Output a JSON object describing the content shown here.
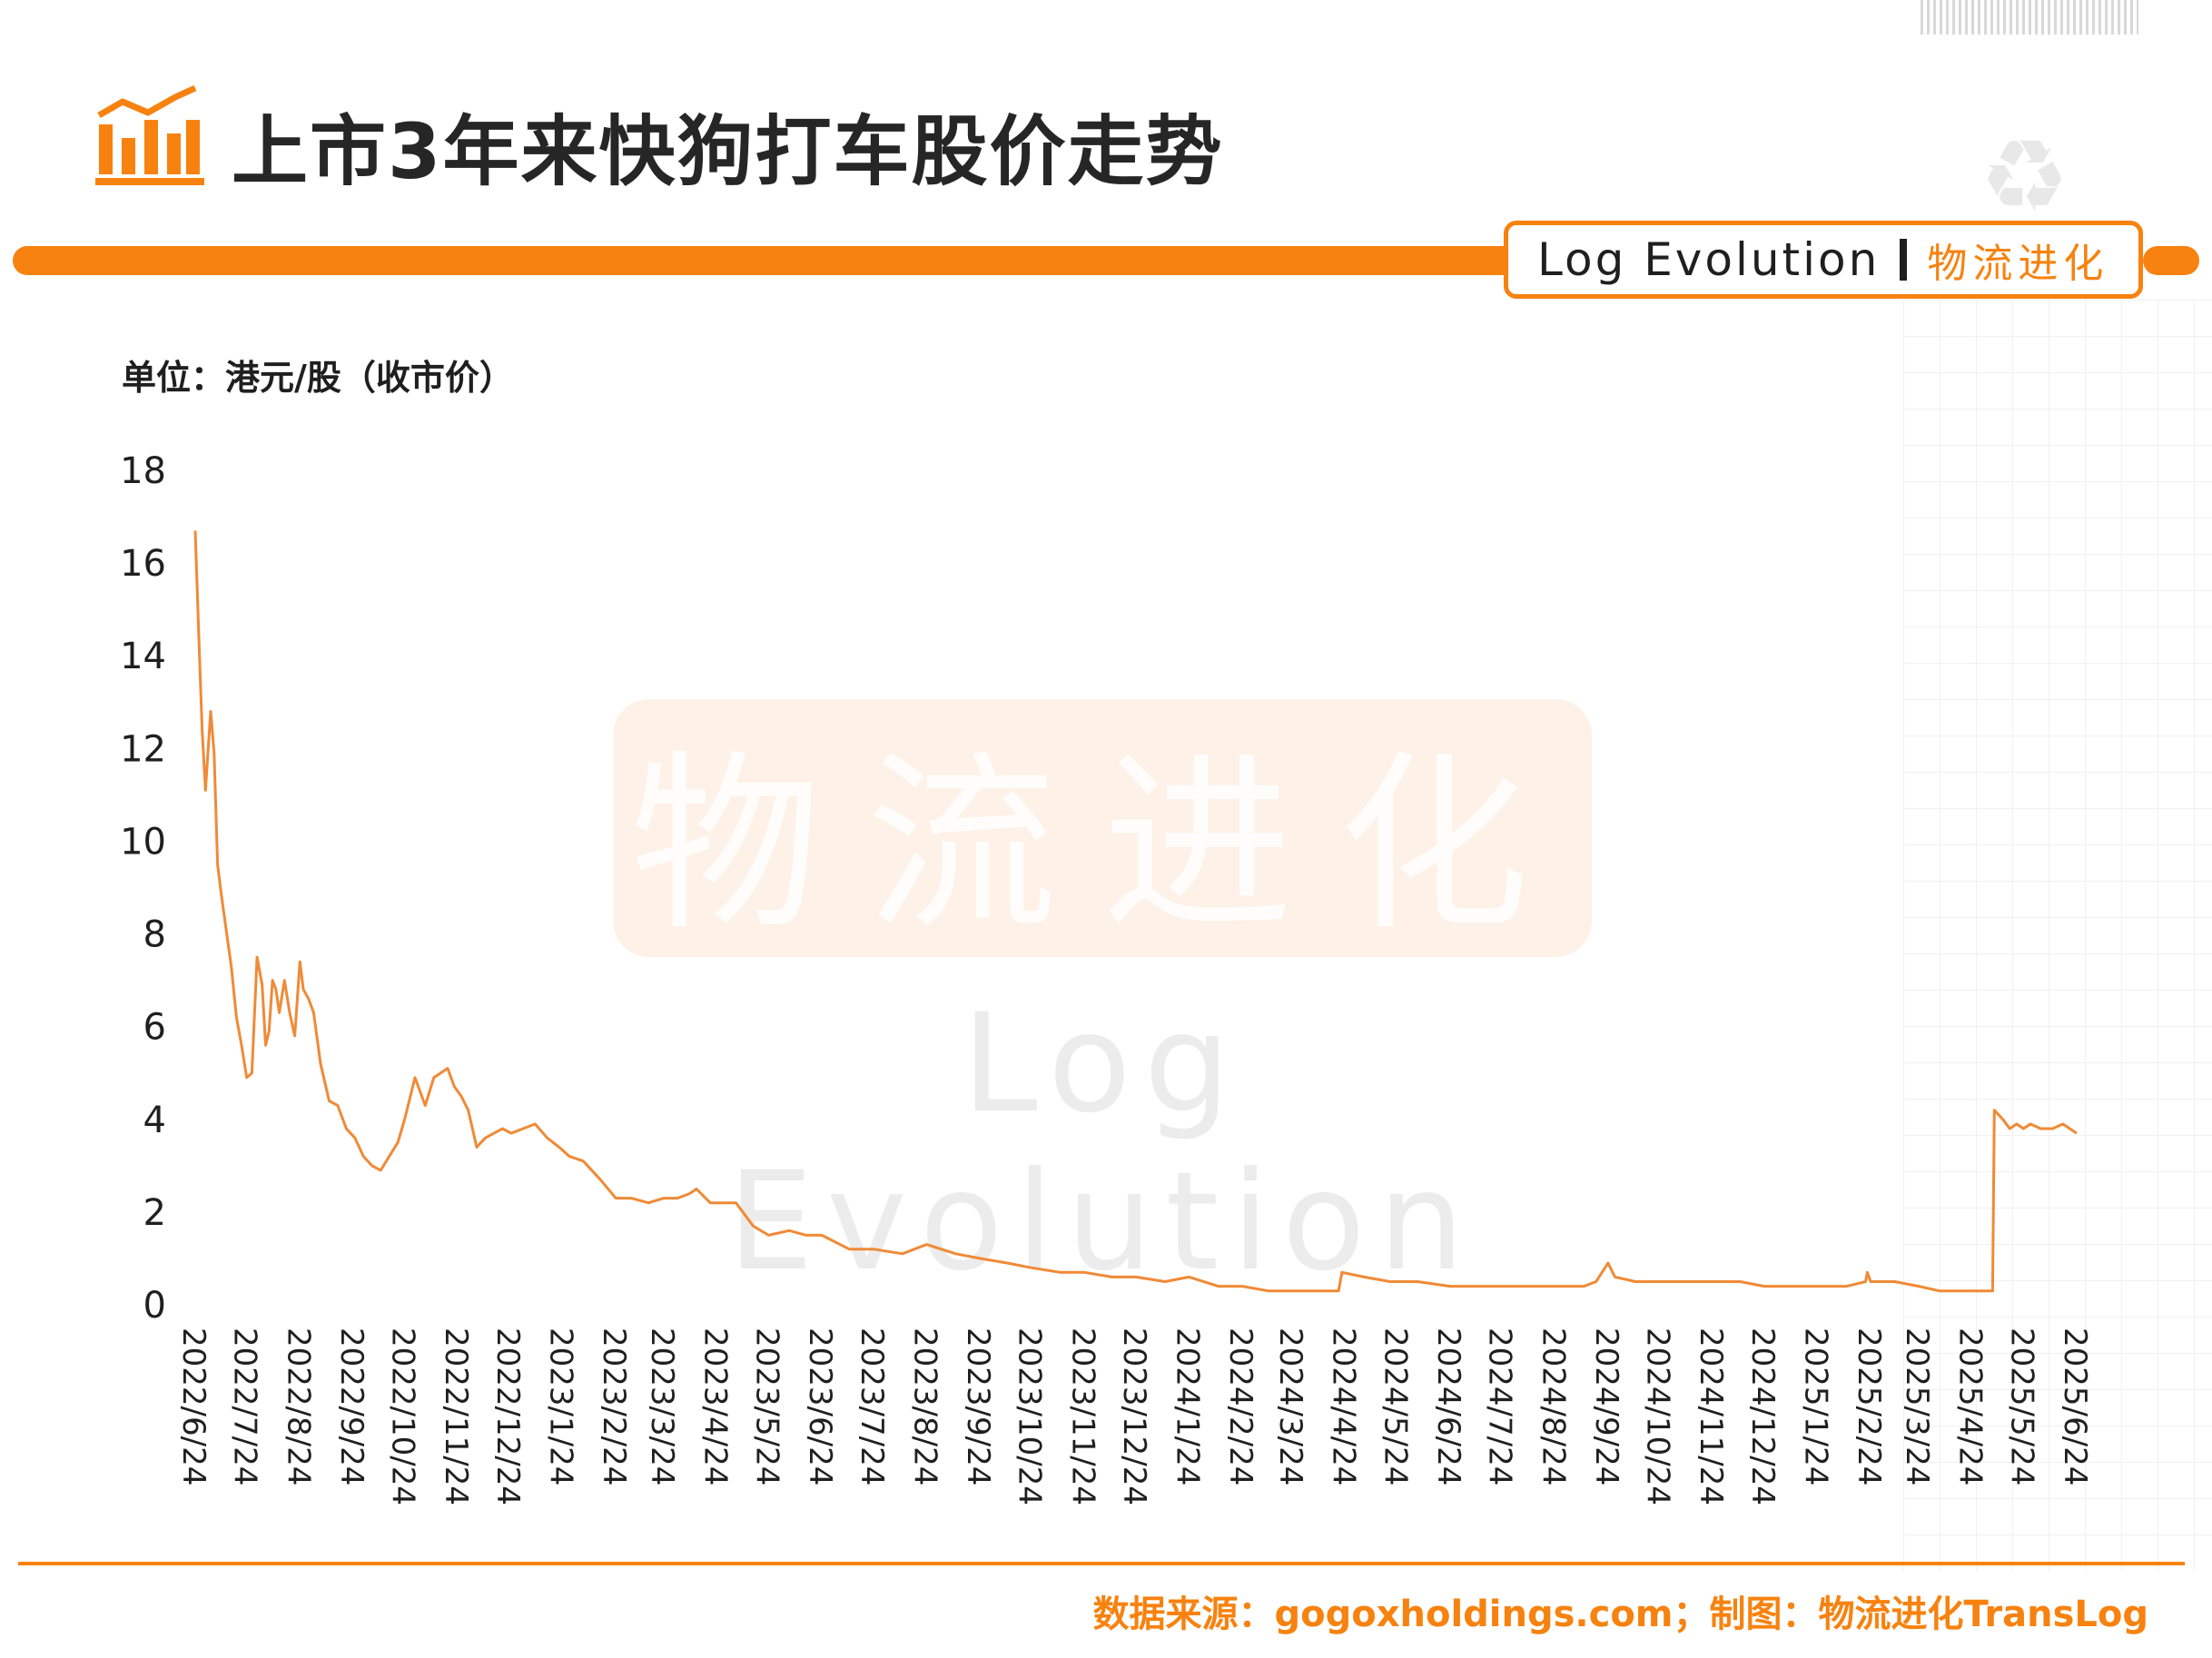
{
  "header": {
    "title": "上市3年来快狗打车股价走势",
    "brand_en": "Log Evolution",
    "brand_cn": "物流进化"
  },
  "watermark": {
    "cn": "物流进化",
    "en": "Log Evolution"
  },
  "footer": {
    "source": "数据来源：gogoxholdings.com；制图：物流进化TransLog"
  },
  "colors": {
    "accent": "#f7820f",
    "line": "#f08a36",
    "text": "#1f1f1f"
  },
  "icons": {
    "title_icon": "bar-chart-trend-icon",
    "recycle": "recycle-icon"
  },
  "chart_data": {
    "type": "line",
    "unit_label": "单位：港元/股（收市价）",
    "xlabel": "",
    "ylabel": "",
    "ylim": [
      0,
      18
    ],
    "yticks": [
      "0",
      "2",
      "4",
      "6",
      "8",
      "10",
      "12",
      "14",
      "16",
      "18"
    ],
    "x_range": [
      "2022-06-24",
      "2025-06-24"
    ],
    "xticks": [
      "2022/6/24",
      "2022/7/24",
      "2022/8/24",
      "2022/9/24",
      "2022/10/24",
      "2022/11/24",
      "2022/12/24",
      "2023/1/24",
      "2023/2/24",
      "2023/3/24",
      "2023/4/24",
      "2023/5/24",
      "2023/6/24",
      "2023/7/24",
      "2023/8/24",
      "2023/9/24",
      "2023/10/24",
      "2023/11/24",
      "2023/12/24",
      "2024/1/24",
      "2024/2/24",
      "2024/3/24",
      "2024/4/24",
      "2024/5/24",
      "2024/6/24",
      "2024/7/24",
      "2024/8/24",
      "2024/9/24",
      "2024/10/24",
      "2024/11/24",
      "2024/12/24",
      "2025/1/24",
      "2025/2/24",
      "2025/3/24",
      "2025/4/24",
      "2025/5/24",
      "2025/6/24"
    ],
    "grid": false,
    "legend": "none",
    "series": [
      {
        "x": [
          "2022-06-24",
          "2022-06-26",
          "2022-06-28",
          "2022-06-30",
          "2022-07-03",
          "2022-07-05",
          "2022-07-07",
          "2022-07-09",
          "2022-07-12",
          "2022-07-15",
          "2022-07-18",
          "2022-07-21",
          "2022-07-24",
          "2022-07-27",
          "2022-07-30",
          "2022-08-02",
          "2022-08-04",
          "2022-08-06",
          "2022-08-08",
          "2022-08-10",
          "2022-08-12",
          "2022-08-15",
          "2022-08-18",
          "2022-08-21",
          "2022-08-24",
          "2022-08-26",
          "2022-08-29",
          "2022-09-01",
          "2022-09-05",
          "2022-09-10",
          "2022-09-15",
          "2022-09-20",
          "2022-09-25",
          "2022-09-30",
          "2022-10-05",
          "2022-10-10",
          "2022-10-15",
          "2022-10-20",
          "2022-10-24",
          "2022-10-30",
          "2022-11-05",
          "2022-11-10",
          "2022-11-14",
          "2022-11-18",
          "2022-11-22",
          "2022-11-26",
          "2022-11-30",
          "2022-12-05",
          "2022-12-10",
          "2022-12-15",
          "2022-12-20",
          "2022-12-25",
          "2023-01-01",
          "2023-01-08",
          "2023-01-15",
          "2023-01-22",
          "2023-01-28",
          "2023-02-05",
          "2023-02-15",
          "2023-02-24",
          "2023-03-05",
          "2023-03-15",
          "2023-03-24",
          "2023-04-01",
          "2023-04-08",
          "2023-04-12",
          "2023-04-20",
          "2023-04-28",
          "2023-05-05",
          "2023-05-15",
          "2023-05-24",
          "2023-06-05",
          "2023-06-15",
          "2023-06-24",
          "2023-07-10",
          "2023-07-24",
          "2023-08-10",
          "2023-08-24",
          "2023-09-10",
          "2023-09-24",
          "2023-10-10",
          "2023-10-24",
          "2023-11-10",
          "2023-11-24",
          "2023-12-10",
          "2023-12-24",
          "2024-01-10",
          "2024-01-24",
          "2024-02-10",
          "2024-02-24",
          "2024-03-10",
          "2024-03-24",
          "2024-04-10",
          "2024-04-20",
          "2024-04-22",
          "2024-05-05",
          "2024-05-20",
          "2024-06-05",
          "2024-06-24",
          "2024-07-10",
          "2024-07-24",
          "2024-08-10",
          "2024-08-24",
          "2024-09-10",
          "2024-09-17",
          "2024-09-24",
          "2024-09-28",
          "2024-10-10",
          "2024-10-24",
          "2024-11-10",
          "2024-11-24",
          "2024-12-10",
          "2024-12-24",
          "2025-01-10",
          "2025-01-24",
          "2025-02-10",
          "2025-02-21",
          "2025-02-22",
          "2025-02-24",
          "2025-03-10",
          "2025-03-24",
          "2025-04-05",
          "2025-04-24",
          "2025-05-06",
          "2025-05-07",
          "2025-05-12",
          "2025-05-16",
          "2025-05-20",
          "2025-05-24",
          "2025-05-28",
          "2025-06-03",
          "2025-06-10",
          "2025-06-16",
          "2025-06-20",
          "2025-06-24"
        ],
        "y": [
          16.7,
          14.5,
          12.4,
          11.1,
          12.8,
          11.9,
          9.5,
          8.9,
          8.1,
          7.3,
          6.2,
          5.6,
          4.9,
          5.0,
          7.5,
          6.9,
          5.6,
          5.9,
          7.0,
          6.8,
          6.3,
          7.0,
          6.3,
          5.8,
          7.4,
          6.8,
          6.6,
          6.3,
          5.2,
          4.4,
          4.3,
          3.8,
          3.6,
          3.2,
          3.0,
          2.9,
          3.2,
          3.5,
          4.0,
          4.9,
          4.3,
          4.9,
          5.0,
          5.1,
          4.7,
          4.5,
          4.2,
          3.4,
          3.6,
          3.7,
          3.8,
          3.7,
          3.8,
          3.9,
          3.6,
          3.4,
          3.2,
          3.1,
          2.7,
          2.3,
          2.3,
          2.2,
          2.3,
          2.3,
          2.4,
          2.5,
          2.2,
          2.2,
          2.2,
          1.7,
          1.5,
          1.6,
          1.5,
          1.5,
          1.2,
          1.2,
          1.1,
          1.3,
          1.1,
          1.0,
          0.9,
          0.8,
          0.7,
          0.7,
          0.6,
          0.6,
          0.5,
          0.6,
          0.4,
          0.4,
          0.3,
          0.3,
          0.3,
          0.3,
          0.7,
          0.6,
          0.5,
          0.5,
          0.4,
          0.4,
          0.4,
          0.4,
          0.4,
          0.4,
          0.5,
          0.9,
          0.6,
          0.5,
          0.5,
          0.5,
          0.5,
          0.5,
          0.4,
          0.4,
          0.4,
          0.4,
          0.5,
          0.7,
          0.5,
          0.5,
          0.4,
          0.3,
          0.3,
          0.3,
          4.2,
          4.0,
          3.8,
          3.9,
          3.8,
          3.9,
          3.8,
          3.8,
          3.9,
          3.8,
          3.7
        ]
      }
    ]
  }
}
